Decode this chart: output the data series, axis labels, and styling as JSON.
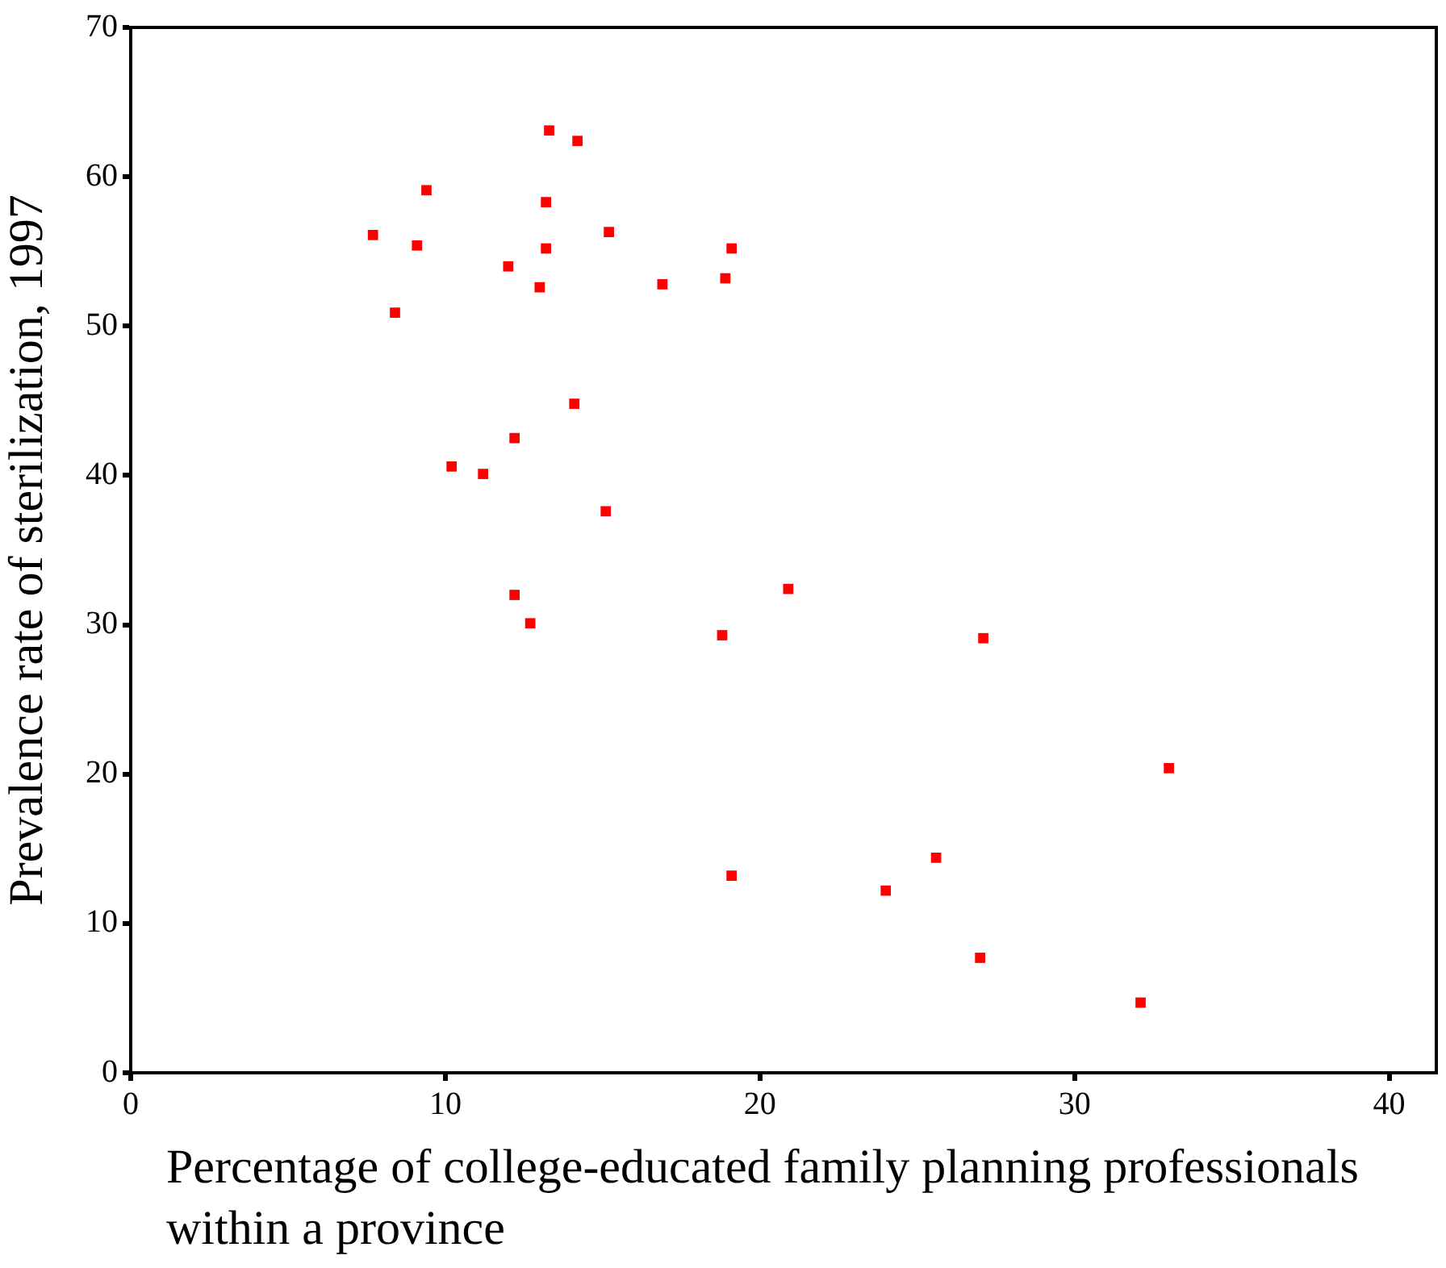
{
  "chart_data": {
    "type": "scatter",
    "xlabel": "Percentage of college-educated family planning professionals within a province",
    "ylabel": "Prevalence rate of sterilization, 1997",
    "x": [
      7.7,
      8.4,
      9.1,
      9.4,
      10.2,
      11.2,
      12.0,
      12.2,
      12.2,
      12.7,
      13.0,
      13.2,
      13.2,
      13.3,
      14.1,
      14.2,
      15.1,
      15.2,
      16.9,
      18.8,
      18.9,
      19.1,
      19.1,
      20.9,
      24.0,
      25.6,
      27.0,
      27.1,
      32.1,
      33.0
    ],
    "series": [
      {
        "color": "#ff0000",
        "values": [
          56.1,
          50.9,
          55.4,
          59.1,
          40.6,
          40.1,
          54.0,
          42.5,
          32.0,
          30.1,
          52.6,
          55.2,
          58.3,
          63.1,
          44.8,
          62.4,
          37.6,
          56.3,
          52.8,
          29.3,
          53.2,
          55.2,
          13.2,
          32.4,
          12.2,
          14.4,
          7.7,
          29.1,
          4.7,
          20.4
        ]
      }
    ],
    "xlim": [
      0,
      41.5
    ],
    "xticks": [
      0,
      10,
      20,
      30,
      40
    ],
    "ylim": [
      0,
      70
    ],
    "yticks": [
      0,
      10,
      20,
      30,
      40,
      50,
      60,
      70
    ],
    "grid": false,
    "legend": false,
    "marker": "square"
  }
}
